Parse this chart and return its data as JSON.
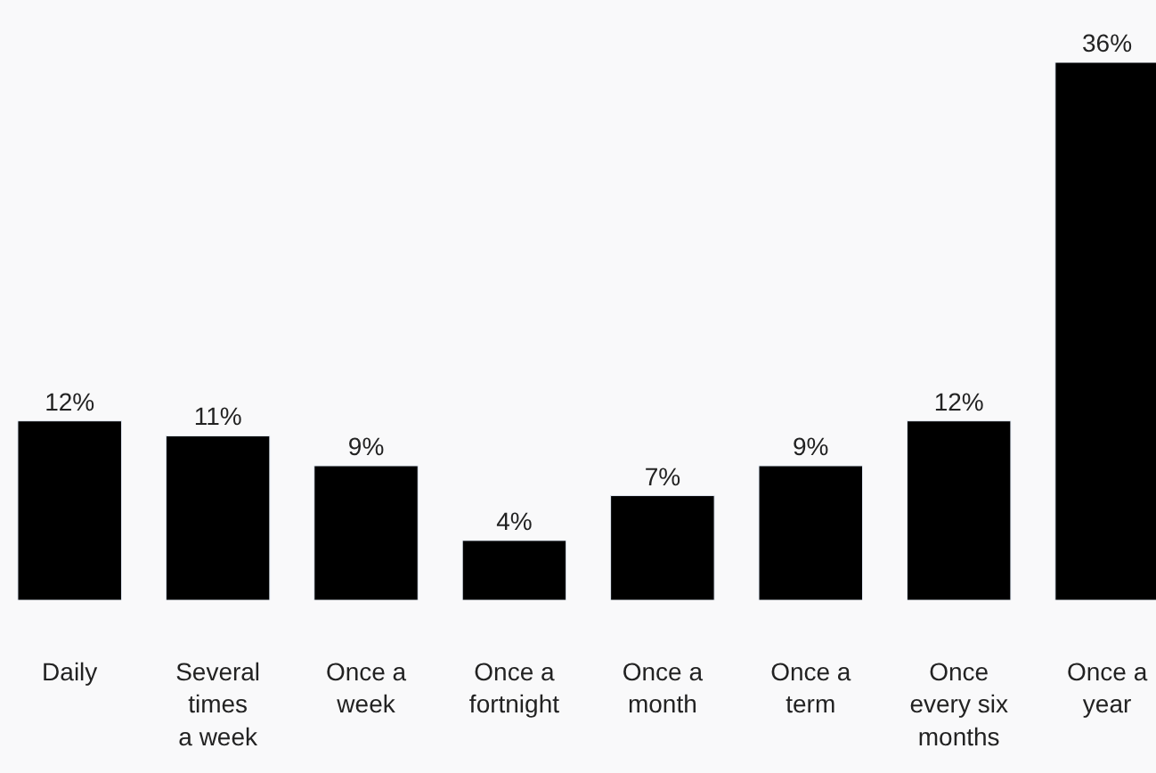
{
  "chart_data": {
    "type": "bar",
    "categories": [
      "Daily",
      "Several\ntimes\na week",
      "Once a\nweek",
      "Once a\nfortnight",
      "Once a\nmonth",
      "Once a\nterm",
      "Once\nevery six\nmonths",
      "Once a\nyear"
    ],
    "values": [
      12,
      11,
      9,
      4,
      7,
      9,
      12,
      36
    ],
    "value_labels": [
      "12%",
      "11%",
      "9%",
      "4%",
      "7%",
      "9%",
      "12%",
      "36%"
    ],
    "color": "#000000",
    "grid": false
  }
}
